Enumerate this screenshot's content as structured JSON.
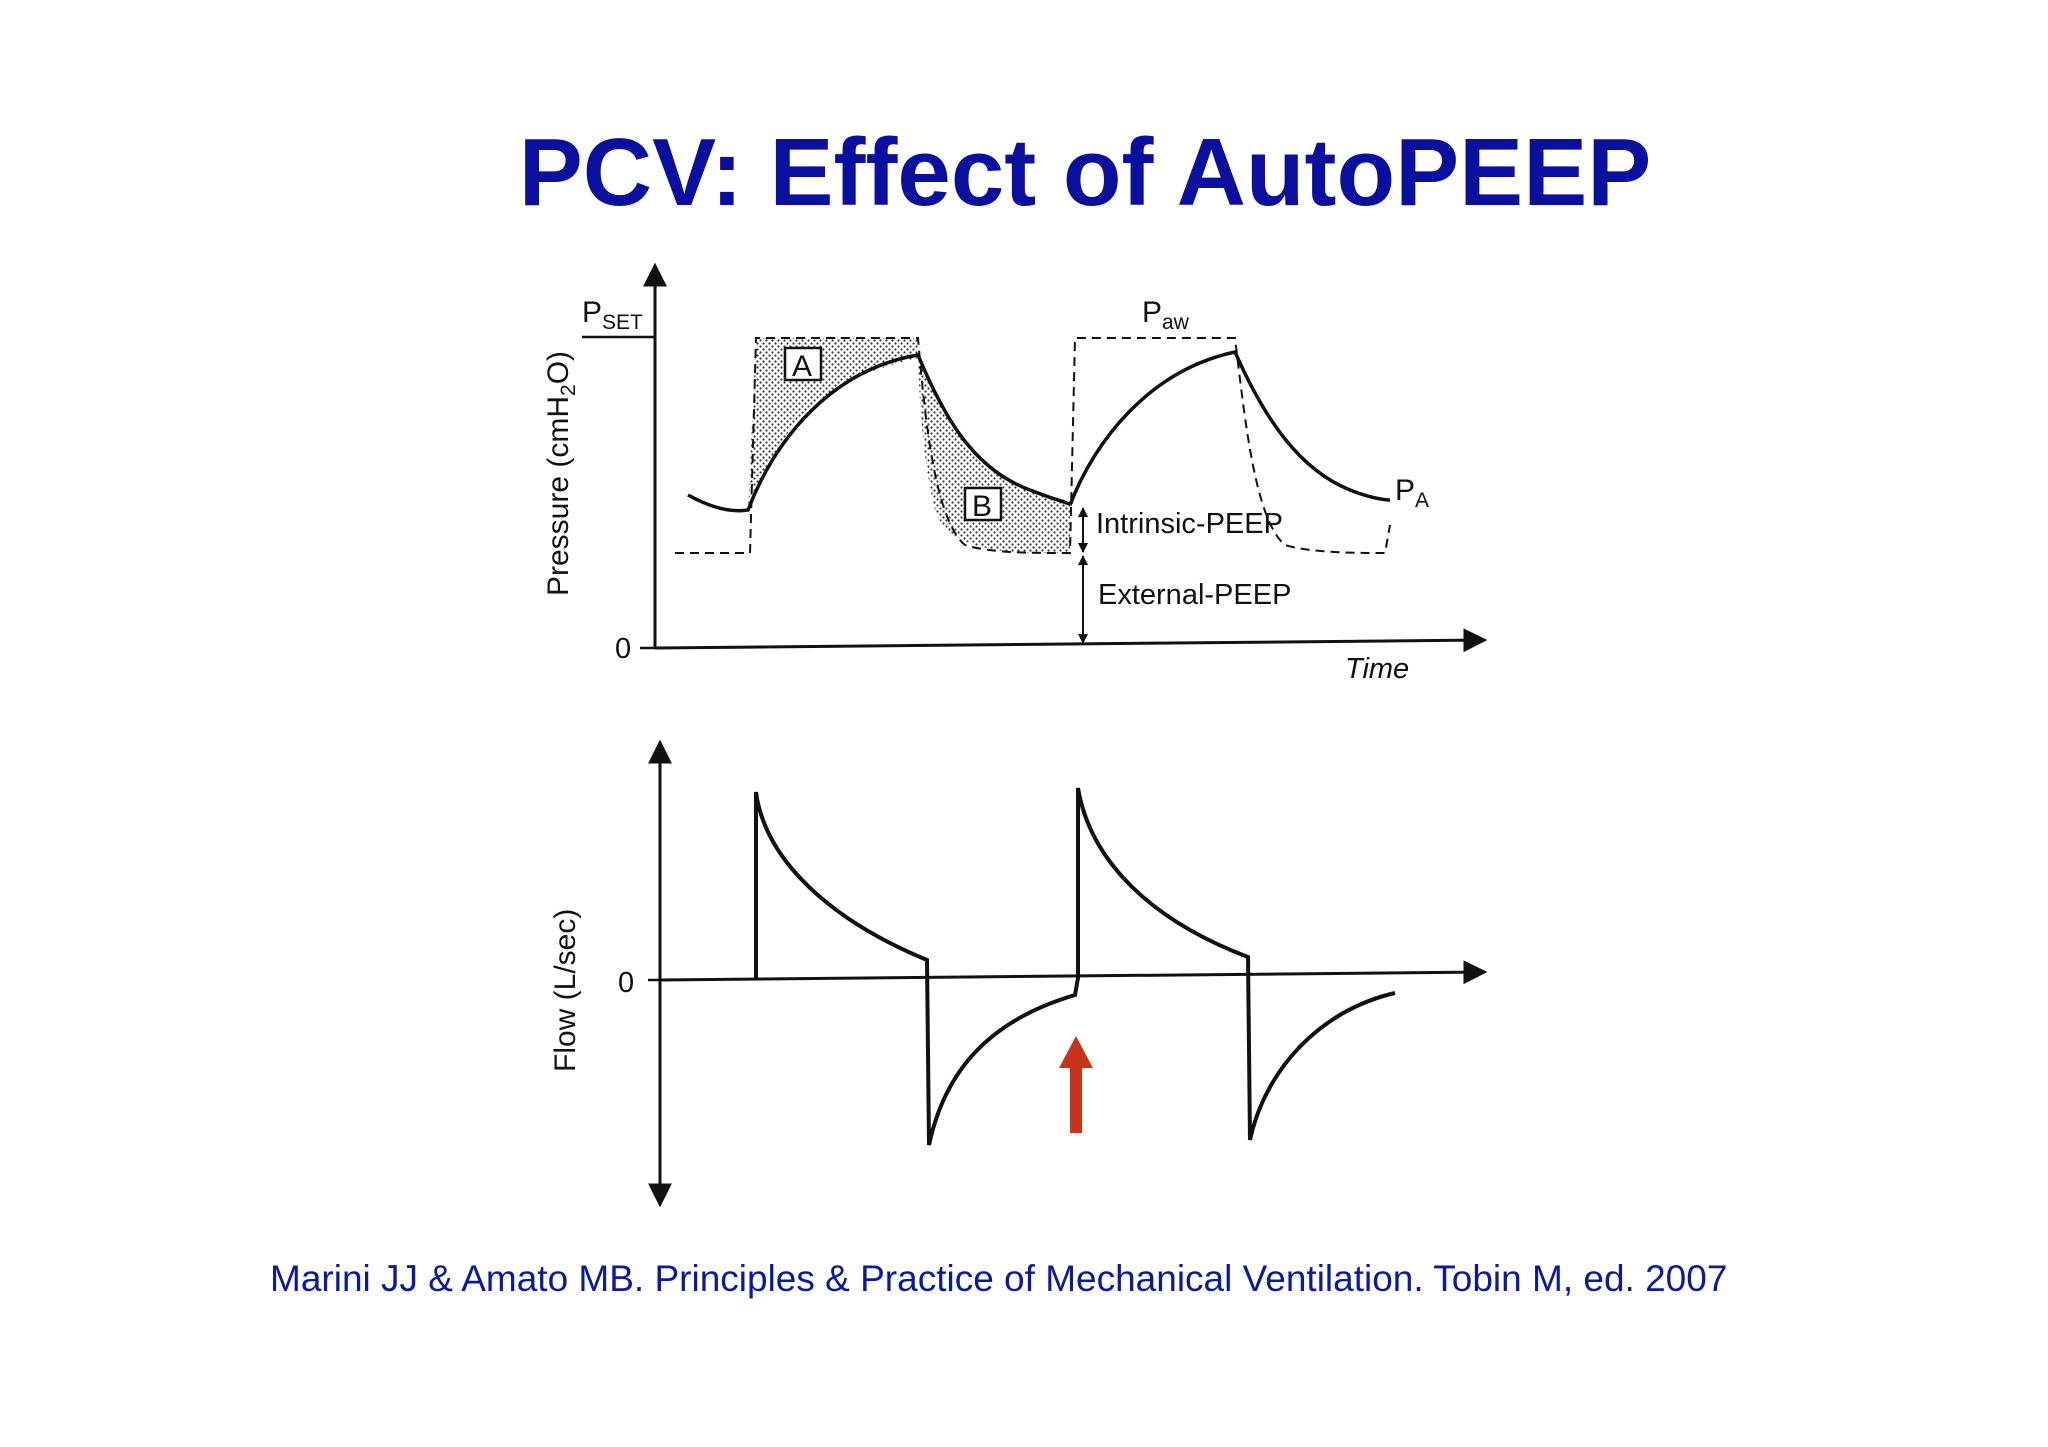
{
  "title": "PCV: Effect of AutoPEEP",
  "citation": "Marini JJ & Amato MB. Principles & Practice of Mechanical Ventilation. Tobin M, ed. 2007",
  "pressure_panel": {
    "ylabel_main": "Pressure (cmH",
    "ylabel_sub": "2",
    "ylabel_end": "O)",
    "zero_tick": "0",
    "pset_main": "P",
    "pset_sub": "SET",
    "paw_main": "P",
    "paw_sub": "aw",
    "pa_main": "P",
    "pa_sub": "A",
    "box_a": "A",
    "box_b": "B",
    "intrinsic_peep": "Intrinsic-PEEP",
    "external_peep": "External-PEEP",
    "xlabel": "Time"
  },
  "flow_panel": {
    "ylabel": "Flow (L/sec)",
    "zero_tick": "0"
  },
  "colors": {
    "title": "#0a0f9e",
    "citation": "#0a1a9e",
    "arrow": "#c8341a",
    "curve": "#111111"
  }
}
